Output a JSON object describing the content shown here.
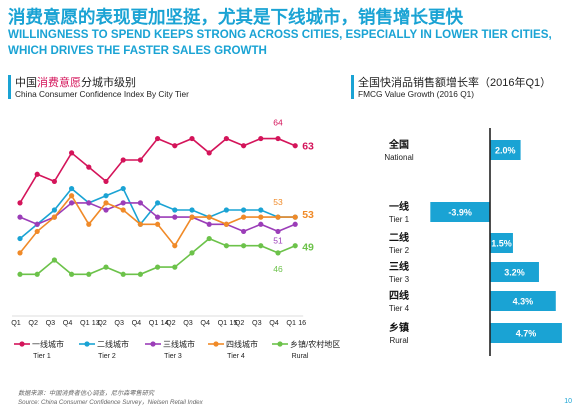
{
  "header": {
    "title_cn": "消费意愿的表现更加坚挺，尤其是下线城市，销售增长更快",
    "title_en": "WILLINGNESS TO SPEND KEEPS STRONG ACROSS CITIES, ESPECIALLY IN LOWER TIER CITIES, WHICH DRIVES THE FASTER SALES GROWTH"
  },
  "left_section": {
    "title_cn_pre": "中国",
    "title_cn_hl": "消费意愿",
    "title_cn_post": "分城市级别",
    "title_en": "China Consumer Confidence Index By City Tier"
  },
  "right_section": {
    "title_cn": "全国快消品销售额增长率（2016年Q1）",
    "title_en": "FMCG Value Growth (2016 Q1)"
  },
  "colors": {
    "tier1": "#d4145a",
    "tier2": "#1aa3d4",
    "tier3": "#9b3db8",
    "tier4": "#f08a28",
    "rural": "#6cc24a",
    "bar": "#1aa3d4",
    "accent": "#1aa3d4"
  },
  "chart_data": [
    {
      "type": "line",
      "categories": [
        "Q1",
        "Q2",
        "Q3",
        "Q4",
        "Q1",
        "Q2",
        "Q3",
        "Q4",
        "Q1",
        "Q2",
        "Q3",
        "Q4",
        "Q1",
        "Q2",
        "Q3",
        "Q4",
        "Q1"
      ],
      "year_labels": [
        "13",
        "14",
        "15",
        "16"
      ],
      "series": [
        {
          "name": "一线城市",
          "name_en": "Tier 1",
          "color": "#d4145a",
          "values": [
            55,
            59,
            58,
            62,
            60,
            58,
            61,
            61,
            64,
            63,
            64,
            62,
            64,
            63,
            64,
            64,
            63
          ]
        },
        {
          "name": "二线城市",
          "name_en": "Tier 2",
          "color": "#1aa3d4",
          "values": [
            50,
            52,
            54,
            57,
            55,
            56,
            57,
            52,
            55,
            54,
            54,
            53,
            54,
            54,
            54,
            53,
            53
          ]
        },
        {
          "name": "三线城市",
          "name_en": "Tier 3",
          "color": "#9b3db8",
          "values": [
            53,
            52,
            53,
            55,
            55,
            54,
            55,
            55,
            53,
            53,
            53,
            52,
            52,
            51,
            52,
            51,
            52
          ]
        },
        {
          "name": "四线城市",
          "name_en": "Tier 4",
          "color": "#f08a28",
          "values": [
            48,
            51,
            53,
            56,
            52,
            55,
            54,
            52,
            52,
            49,
            53,
            53,
            52,
            53,
            53,
            53,
            53
          ]
        },
        {
          "name": "乡镇/农村地区",
          "name_en": "Rural",
          "color": "#6cc24a",
          "values": [
            45,
            45,
            47,
            45,
            45,
            46,
            45,
            45,
            46,
            46,
            48,
            50,
            49,
            49,
            49,
            48,
            49
          ]
        }
      ],
      "end_labels": [
        {
          "value": "63",
          "color": "#d4145a"
        },
        {
          "value": "53",
          "color": "#f08a28"
        },
        {
          "value": "49",
          "color": "#6cc24a"
        }
      ],
      "inline_labels": [
        {
          "value": "64",
          "color": "#d4145a"
        },
        {
          "value": "53",
          "color": "#f08a28"
        },
        {
          "value": "51",
          "color": "#9b3db8"
        },
        {
          "value": "46",
          "color": "#6cc24a"
        }
      ],
      "ylim": [
        40,
        68
      ]
    },
    {
      "type": "bar",
      "orientation": "horizontal",
      "categories": [
        {
          "cn": "全国",
          "en": "National"
        },
        {
          "cn": "一线",
          "en": "Tier 1"
        },
        {
          "cn": "二线",
          "en": "Tier 2"
        },
        {
          "cn": "三线",
          "en": "Tier 3"
        },
        {
          "cn": "四线",
          "en": "Tier 4"
        },
        {
          "cn": "乡镇",
          "en": "Rural"
        }
      ],
      "values": [
        2.0,
        -3.9,
        1.5,
        3.2,
        4.3,
        4.7
      ],
      "labels": [
        "2.0%",
        "-3.9%",
        "1.5%",
        "3.2%",
        "4.3%",
        "4.7%"
      ],
      "xlim": [
        -5.0,
        5.0
      ]
    }
  ],
  "footer": {
    "source_cn": "数据来源：中国消费者信心调查，尼尔森零售研究",
    "source_en": "Source: China Consumer Confidence Survey，Nielsen Retail Index",
    "page_number": "10"
  }
}
